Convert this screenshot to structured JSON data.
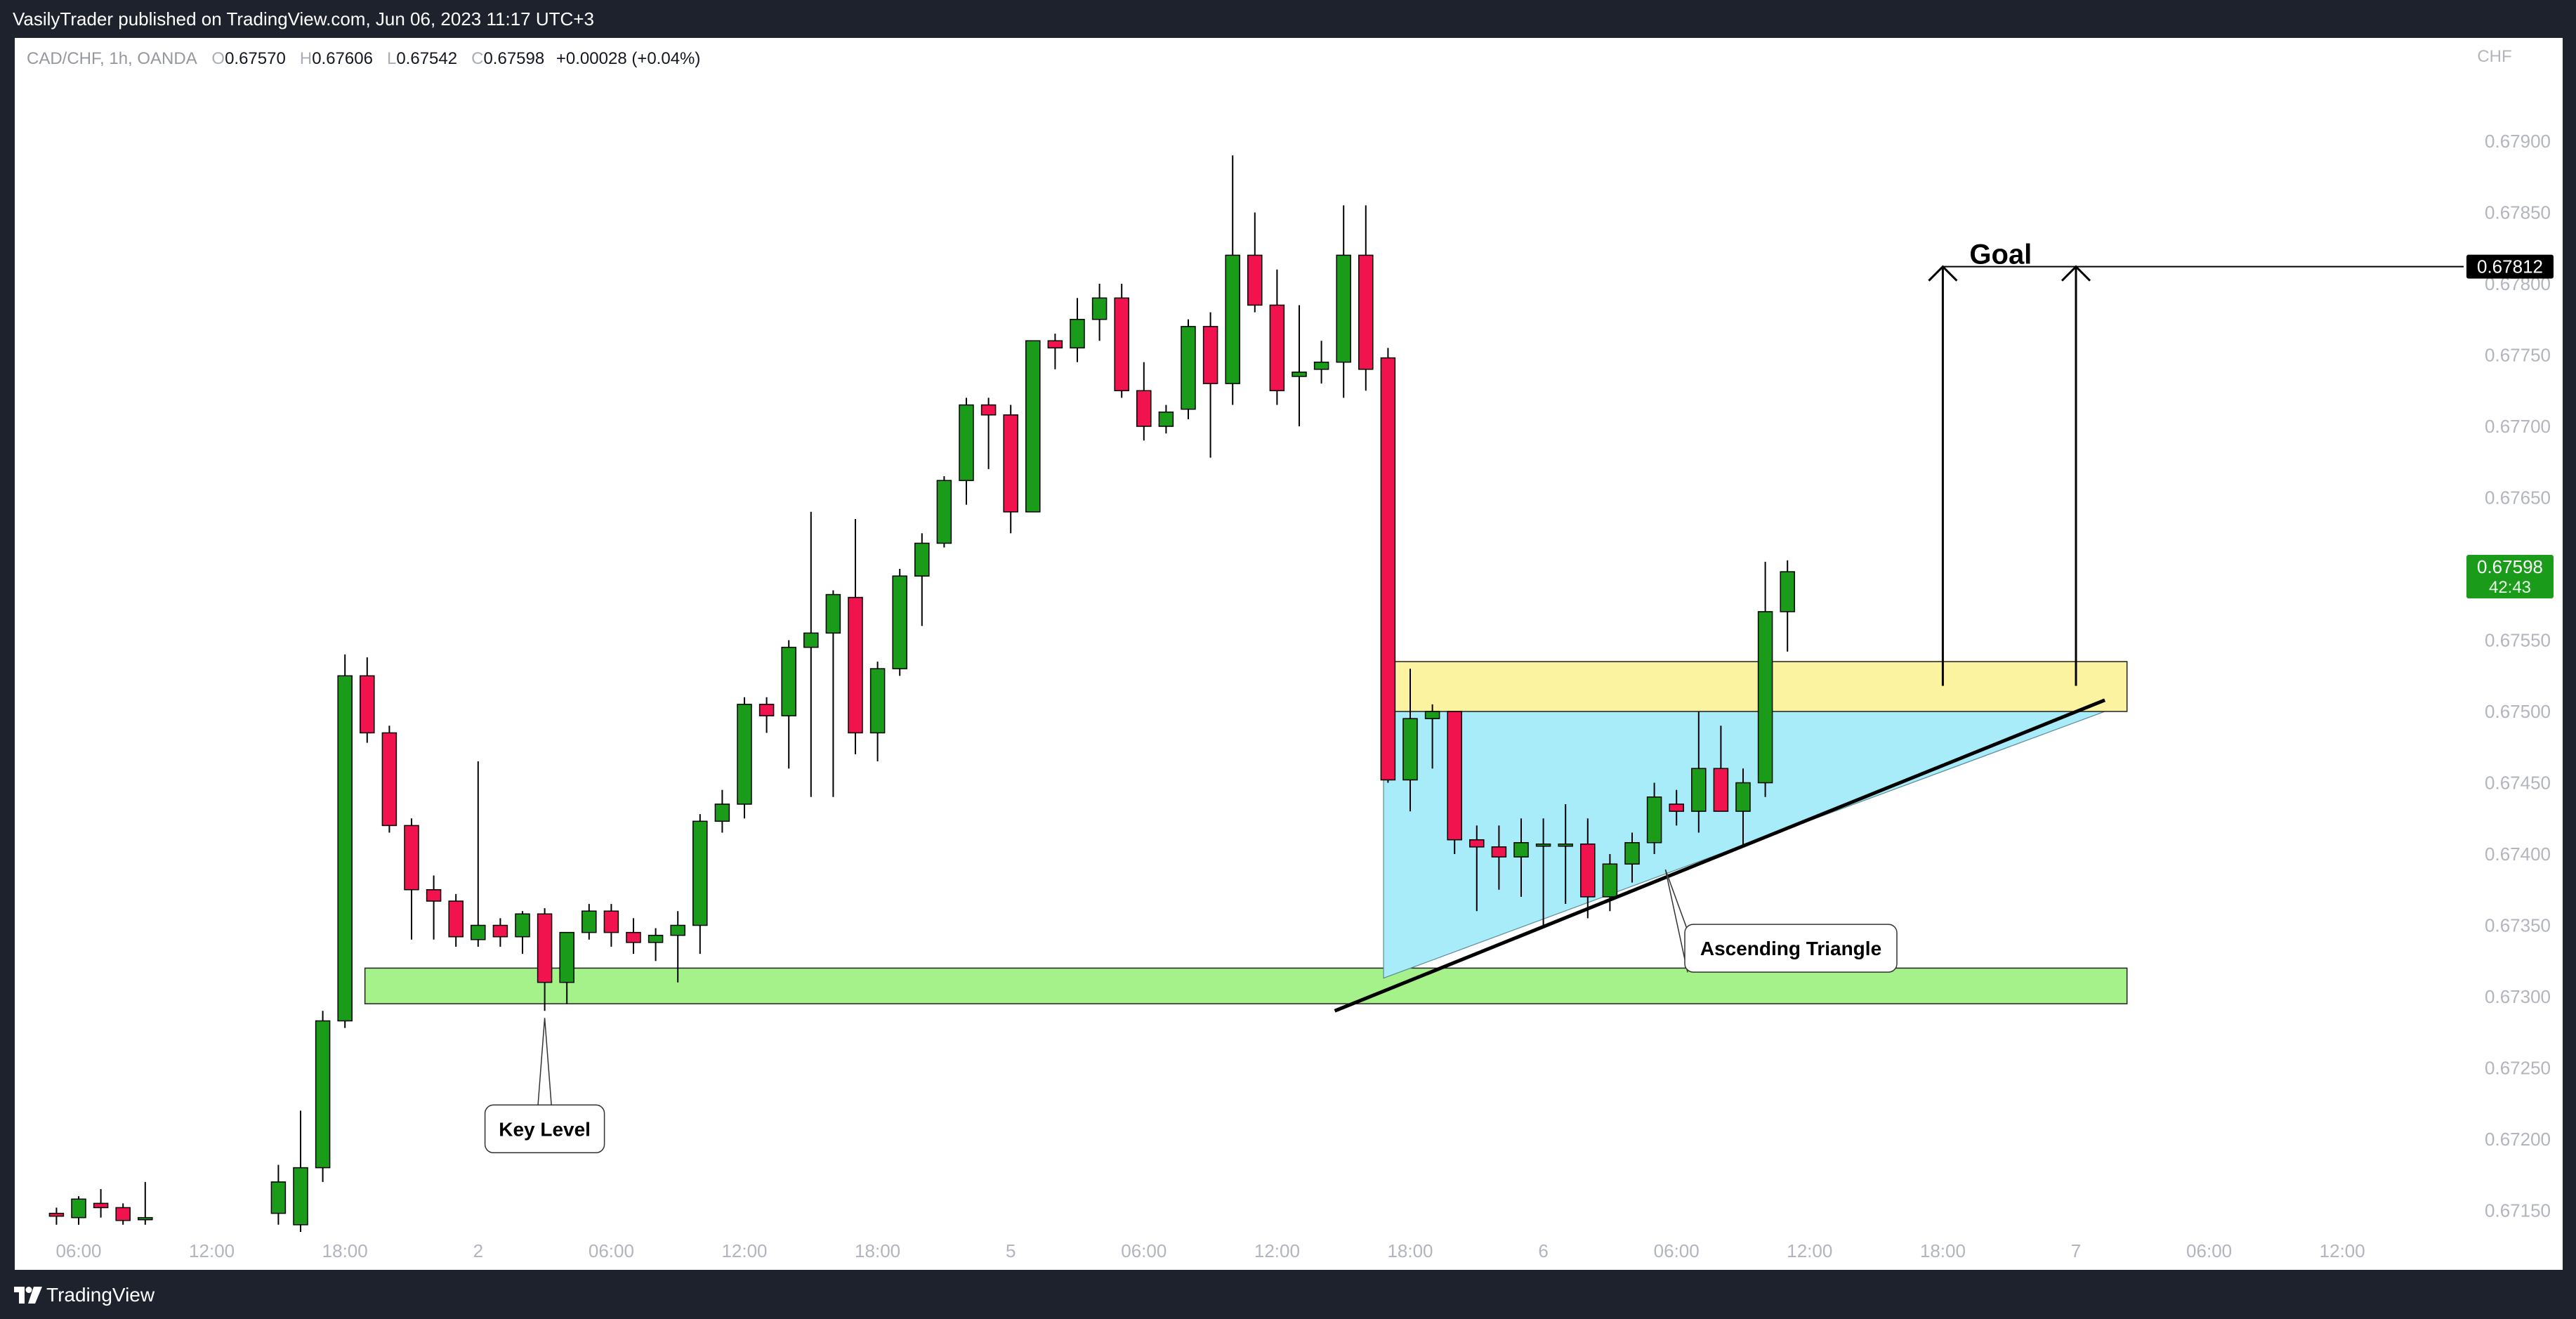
{
  "header": {
    "published_line": "VasilyTrader published on TradingView.com, Jun 06, 2023 11:17 UTC+3"
  },
  "legend": {
    "symbol": "CAD/CHF, 1h, OANDA",
    "o_label": "O",
    "o_value": "0.67570",
    "h_label": "H",
    "h_value": "0.67606",
    "l_label": "L",
    "l_value": "0.67542",
    "c_label": "C",
    "c_value": "0.67598",
    "change": "+0.00028 (+0.04%)"
  },
  "footer": {
    "brand": "TradingView"
  },
  "colors": {
    "up": "#1a9c1a",
    "down": "#f0134d",
    "support_zone": "#a5f28a",
    "resistance_zone": "#fcf3a0",
    "triangle_fill": "#a8ecfa",
    "price_tag_current": "#1a9c1a",
    "price_tag_goal": "#000000"
  },
  "chart_data": {
    "type": "candlestick",
    "symbol": "CAD/CHF",
    "timeframe": "1h",
    "currency_label": "CHF",
    "ylim": [
      0.6713,
      0.6795
    ],
    "y_ticks": [
      0.6715,
      0.672,
      0.6725,
      0.673,
      0.6735,
      0.674,
      0.6745,
      0.675,
      0.6755,
      0.676,
      0.6765,
      0.677,
      0.6775,
      0.678,
      0.6785,
      0.679
    ],
    "y_tick_labels": [
      "0.67150",
      "0.67200",
      "0.67250",
      "0.67300",
      "0.67350",
      "0.67400",
      "0.67450",
      "0.67500",
      "0.67550",
      "0.67600",
      "0.67650",
      "0.67700",
      "0.67750",
      "0.67800",
      "0.67850",
      "0.67900"
    ],
    "x_tick_labels": [
      {
        "label": "06:00",
        "bar": 0
      },
      {
        "label": "12:00",
        "bar": 6
      },
      {
        "label": "18:00",
        "bar": 12
      },
      {
        "label": "2",
        "bar": 18
      },
      {
        "label": "06:00",
        "bar": 24
      },
      {
        "label": "12:00",
        "bar": 30
      },
      {
        "label": "18:00",
        "bar": 36
      },
      {
        "label": "5",
        "bar": 42
      },
      {
        "label": "06:00",
        "bar": 48
      },
      {
        "label": "12:00",
        "bar": 54
      },
      {
        "label": "18:00",
        "bar": 60
      },
      {
        "label": "6",
        "bar": 66
      },
      {
        "label": "06:00",
        "bar": 72
      },
      {
        "label": "12:00",
        "bar": 78
      },
      {
        "label": "18:00",
        "bar": 84
      },
      {
        "label": "7",
        "bar": 90
      },
      {
        "label": "06:00",
        "bar": 96
      },
      {
        "label": "12:00",
        "bar": 102
      }
    ],
    "candles": [
      {
        "bar": -1,
        "o": 0.67148,
        "h": 0.67152,
        "l": 0.6714,
        "c": 0.67146
      },
      {
        "bar": 0,
        "o": 0.67145,
        "h": 0.6716,
        "l": 0.6714,
        "c": 0.67158
      },
      {
        "bar": 1,
        "o": 0.67155,
        "h": 0.67165,
        "l": 0.67145,
        "c": 0.67152
      },
      {
        "bar": 2,
        "o": 0.67152,
        "h": 0.67155,
        "l": 0.6714,
        "c": 0.67143
      },
      {
        "bar": 3,
        "o": 0.67145,
        "h": 0.6717,
        "l": 0.6714,
        "c": 0.67145
      },
      {
        "bar": 9,
        "o": 0.67148,
        "h": 0.67182,
        "l": 0.6714,
        "c": 0.6717
      },
      {
        "bar": 10,
        "o": 0.6714,
        "h": 0.6722,
        "l": 0.67135,
        "c": 0.6718
      },
      {
        "bar": 11,
        "o": 0.6718,
        "h": 0.6729,
        "l": 0.6717,
        "c": 0.67283
      },
      {
        "bar": 12,
        "o": 0.67283,
        "h": 0.6754,
        "l": 0.67278,
        "c": 0.67525
      },
      {
        "bar": 13,
        "o": 0.67525,
        "h": 0.67538,
        "l": 0.67478,
        "c": 0.67485
      },
      {
        "bar": 14,
        "o": 0.67485,
        "h": 0.6749,
        "l": 0.67415,
        "c": 0.6742
      },
      {
        "bar": 15,
        "o": 0.6742,
        "h": 0.67425,
        "l": 0.6734,
        "c": 0.67375
      },
      {
        "bar": 16,
        "o": 0.67375,
        "h": 0.67385,
        "l": 0.6734,
        "c": 0.67367
      },
      {
        "bar": 17,
        "o": 0.67367,
        "h": 0.67372,
        "l": 0.67335,
        "c": 0.67342
      },
      {
        "bar": 18,
        "o": 0.6734,
        "h": 0.67465,
        "l": 0.67335,
        "c": 0.6735
      },
      {
        "bar": 19,
        "o": 0.6735,
        "h": 0.67355,
        "l": 0.67335,
        "c": 0.67342
      },
      {
        "bar": 20,
        "o": 0.67342,
        "h": 0.6736,
        "l": 0.6733,
        "c": 0.67358
      },
      {
        "bar": 21,
        "o": 0.67358,
        "h": 0.67362,
        "l": 0.6729,
        "c": 0.6731
      },
      {
        "bar": 22,
        "o": 0.6731,
        "h": 0.67345,
        "l": 0.67295,
        "c": 0.67345
      },
      {
        "bar": 23,
        "o": 0.67345,
        "h": 0.67365,
        "l": 0.6734,
        "c": 0.6736
      },
      {
        "bar": 24,
        "o": 0.6736,
        "h": 0.67365,
        "l": 0.67335,
        "c": 0.67345
      },
      {
        "bar": 25,
        "o": 0.67345,
        "h": 0.67355,
        "l": 0.6733,
        "c": 0.67338
      },
      {
        "bar": 26,
        "o": 0.67338,
        "h": 0.67348,
        "l": 0.67325,
        "c": 0.67343
      },
      {
        "bar": 27,
        "o": 0.67343,
        "h": 0.6736,
        "l": 0.6731,
        "c": 0.6735
      },
      {
        "bar": 28,
        "o": 0.6735,
        "h": 0.67428,
        "l": 0.6733,
        "c": 0.67423
      },
      {
        "bar": 29,
        "o": 0.67423,
        "h": 0.67445,
        "l": 0.67415,
        "c": 0.67435
      },
      {
        "bar": 30,
        "o": 0.67435,
        "h": 0.6751,
        "l": 0.67425,
        "c": 0.67505
      },
      {
        "bar": 31,
        "o": 0.67505,
        "h": 0.6751,
        "l": 0.67485,
        "c": 0.67497
      },
      {
        "bar": 32,
        "o": 0.67497,
        "h": 0.6755,
        "l": 0.6746,
        "c": 0.67545
      },
      {
        "bar": 33,
        "o": 0.67545,
        "h": 0.6764,
        "l": 0.6744,
        "c": 0.67555
      },
      {
        "bar": 34,
        "o": 0.67555,
        "h": 0.67585,
        "l": 0.6744,
        "c": 0.67582
      },
      {
        "bar": 35,
        "o": 0.6758,
        "h": 0.67635,
        "l": 0.6747,
        "c": 0.67485
      },
      {
        "bar": 36,
        "o": 0.67485,
        "h": 0.67535,
        "l": 0.67465,
        "c": 0.6753
      },
      {
        "bar": 37,
        "o": 0.6753,
        "h": 0.676,
        "l": 0.67525,
        "c": 0.67595
      },
      {
        "bar": 38,
        "o": 0.67595,
        "h": 0.67625,
        "l": 0.6756,
        "c": 0.67618
      },
      {
        "bar": 39,
        "o": 0.67618,
        "h": 0.67665,
        "l": 0.67615,
        "c": 0.67662
      },
      {
        "bar": 40,
        "o": 0.67662,
        "h": 0.6772,
        "l": 0.67645,
        "c": 0.67715
      },
      {
        "bar": 41,
        "o": 0.67715,
        "h": 0.6772,
        "l": 0.6767,
        "c": 0.67708
      },
      {
        "bar": 42,
        "o": 0.67708,
        "h": 0.67715,
        "l": 0.67625,
        "c": 0.6764
      },
      {
        "bar": 43,
        "o": 0.6764,
        "h": 0.6776,
        "l": 0.6764,
        "c": 0.6776
      },
      {
        "bar": 44,
        "o": 0.6776,
        "h": 0.67765,
        "l": 0.6774,
        "c": 0.67755
      },
      {
        "bar": 45,
        "o": 0.67755,
        "h": 0.6779,
        "l": 0.67745,
        "c": 0.67775
      },
      {
        "bar": 46,
        "o": 0.67775,
        "h": 0.678,
        "l": 0.6776,
        "c": 0.6779
      },
      {
        "bar": 47,
        "o": 0.6779,
        "h": 0.678,
        "l": 0.6772,
        "c": 0.67725
      },
      {
        "bar": 48,
        "o": 0.67725,
        "h": 0.67745,
        "l": 0.6769,
        "c": 0.677
      },
      {
        "bar": 49,
        "o": 0.677,
        "h": 0.67715,
        "l": 0.67695,
        "c": 0.6771
      },
      {
        "bar": 50,
        "o": 0.67712,
        "h": 0.67775,
        "l": 0.67705,
        "c": 0.6777
      },
      {
        "bar": 51,
        "o": 0.6777,
        "h": 0.6778,
        "l": 0.67678,
        "c": 0.6773
      },
      {
        "bar": 52,
        "o": 0.6773,
        "h": 0.6789,
        "l": 0.67715,
        "c": 0.6782
      },
      {
        "bar": 53,
        "o": 0.6782,
        "h": 0.6785,
        "l": 0.6778,
        "c": 0.67785
      },
      {
        "bar": 54,
        "o": 0.67785,
        "h": 0.6781,
        "l": 0.67715,
        "c": 0.67725
      },
      {
        "bar": 55,
        "o": 0.67735,
        "h": 0.67785,
        "l": 0.677,
        "c": 0.67738
      },
      {
        "bar": 56,
        "o": 0.6774,
        "h": 0.6776,
        "l": 0.6773,
        "c": 0.67745
      },
      {
        "bar": 57,
        "o": 0.67745,
        "h": 0.67855,
        "l": 0.6772,
        "c": 0.6782
      },
      {
        "bar": 58,
        "o": 0.6782,
        "h": 0.67855,
        "l": 0.67725,
        "c": 0.6774
      },
      {
        "bar": 59,
        "o": 0.67748,
        "h": 0.67755,
        "l": 0.6745,
        "c": 0.67452
      },
      {
        "bar": 60,
        "o": 0.67452,
        "h": 0.6753,
        "l": 0.6743,
        "c": 0.67495
      },
      {
        "bar": 61,
        "o": 0.67495,
        "h": 0.67505,
        "l": 0.6746,
        "c": 0.675
      },
      {
        "bar": 62,
        "o": 0.675,
        "h": 0.675,
        "l": 0.674,
        "c": 0.6741
      },
      {
        "bar": 63,
        "o": 0.6741,
        "h": 0.6742,
        "l": 0.6736,
        "c": 0.67405
      },
      {
        "bar": 64,
        "o": 0.67405,
        "h": 0.6742,
        "l": 0.67375,
        "c": 0.67398
      },
      {
        "bar": 65,
        "o": 0.67398,
        "h": 0.67425,
        "l": 0.6737,
        "c": 0.67408
      },
      {
        "bar": 66,
        "o": 0.67407,
        "h": 0.67425,
        "l": 0.6735,
        "c": 0.67407
      },
      {
        "bar": 67,
        "o": 0.67407,
        "h": 0.67435,
        "l": 0.67365,
        "c": 0.67407
      },
      {
        "bar": 68,
        "o": 0.67407,
        "h": 0.67425,
        "l": 0.67355,
        "c": 0.6737
      },
      {
        "bar": 69,
        "o": 0.6737,
        "h": 0.674,
        "l": 0.6736,
        "c": 0.67393
      },
      {
        "bar": 70,
        "o": 0.67393,
        "h": 0.67415,
        "l": 0.6738,
        "c": 0.67408
      },
      {
        "bar": 71,
        "o": 0.67408,
        "h": 0.6745,
        "l": 0.674,
        "c": 0.6744
      },
      {
        "bar": 72,
        "o": 0.67435,
        "h": 0.67445,
        "l": 0.6742,
        "c": 0.6743
      },
      {
        "bar": 73,
        "o": 0.6743,
        "h": 0.675,
        "l": 0.67415,
        "c": 0.6746
      },
      {
        "bar": 74,
        "o": 0.6746,
        "h": 0.6749,
        "l": 0.6743,
        "c": 0.6743
      },
      {
        "bar": 75,
        "o": 0.6743,
        "h": 0.6746,
        "l": 0.67405,
        "c": 0.6745
      },
      {
        "bar": 76,
        "o": 0.6745,
        "h": 0.67605,
        "l": 0.6744,
        "c": 0.6757
      },
      {
        "bar": 77,
        "o": 0.6757,
        "h": 0.67606,
        "l": 0.67542,
        "c": 0.67598
      }
    ],
    "zones": [
      {
        "name": "support",
        "from_bar": 12.9,
        "to_bar": 92.3,
        "top": 0.6732,
        "bottom": 0.67295
      },
      {
        "name": "resistance",
        "from_bar": 58.8,
        "to_bar": 92.3,
        "top": 0.67535,
        "bottom": 0.675
      }
    ],
    "triangle": {
      "apex_bar": 58.8,
      "apex_low": 0.67313,
      "top_left_bar": 58.8,
      "top_right_bar": 91.3,
      "top": 0.675
    },
    "trendline": {
      "x1_bar": 56.6,
      "y1": 0.6729,
      "x2_bar": 91.3,
      "y2": 0.67508
    },
    "arrows": [
      {
        "bar": 84.0,
        "from": 0.67518,
        "to": 0.67812
      },
      {
        "bar": 90.0,
        "from": 0.67518,
        "to": 0.67812
      }
    ],
    "goal_level": 0.67812,
    "goal_line_from_bar": 84.0,
    "current_price": 0.67598,
    "price_tags": {
      "goal": "0.67812",
      "current": "0.67598",
      "countdown": "42:43"
    },
    "annotations": {
      "goal": "Goal",
      "key_level": "Key Level",
      "pattern": "Ascending Triangle"
    }
  }
}
